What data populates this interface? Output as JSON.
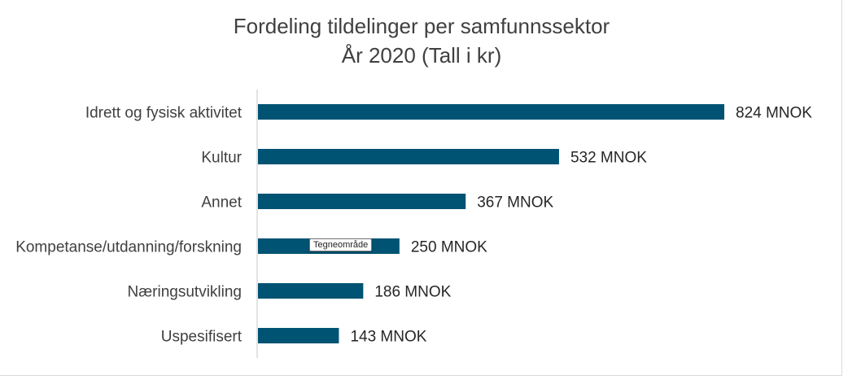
{
  "chart_data": {
    "type": "bar",
    "orientation": "horizontal",
    "title": [
      "Fordeling tildelinger per samfunnssektor",
      "År 2020 (Tall i kr)"
    ],
    "categories": [
      "Idrett og fysisk aktivitet",
      "Kultur",
      "Annet",
      "Kompetanse/utdanning/forskning",
      "Næringsutvikling",
      "Uspesifisert"
    ],
    "values": [
      824,
      532,
      367,
      250,
      186,
      143
    ],
    "value_labels": [
      "824 MNOK",
      "532 MNOK",
      "367 MNOK",
      "250 MNOK",
      "186 MNOK",
      "143 MNOK"
    ],
    "xlim": [
      0,
      824
    ],
    "grid": false,
    "legend": "none",
    "bar_color": "#005373"
  },
  "tooltip": {
    "label": "Tegneområde"
  }
}
